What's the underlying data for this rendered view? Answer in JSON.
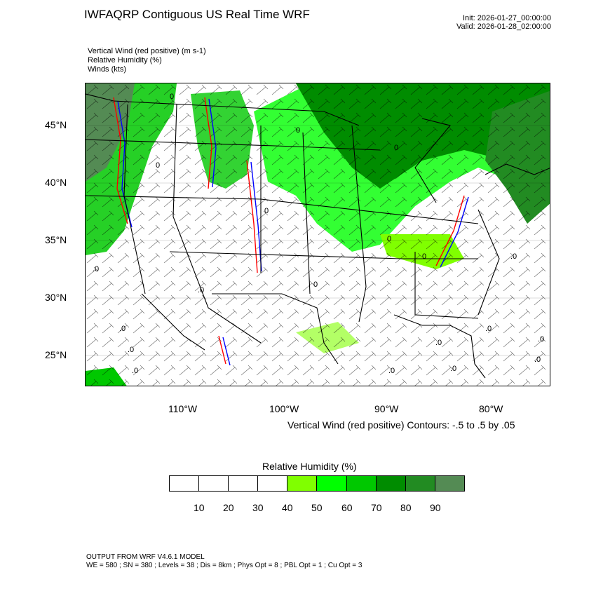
{
  "header": {
    "title": "IWFAQRP Contiguous US Real Time WRF",
    "init": "Init: 2026-01-27_00:00:00",
    "valid": "Valid: 2026-01-28_02:00:00"
  },
  "fields": [
    "Vertical Wind (red positive)   (m s-1)",
    "Relative Humidity   (%)",
    "Winds   (kts)"
  ],
  "map": {
    "lat_labels": [
      "45°N",
      "40°N",
      "35°N",
      "30°N",
      "25°N"
    ],
    "lon_labels": [
      "110°W",
      "100°W",
      "90°W",
      "80°W"
    ],
    "wind_markers": [
      "0",
      "0",
      "0",
      "0",
      "0",
      "0",
      "0",
      "0",
      ".0",
      ".0",
      ".0",
      ".0",
      ".0",
      ".0",
      ".0",
      ".0",
      ".0",
      ".0",
      ".0",
      ".0"
    ]
  },
  "contour_note": "Vertical Wind (red positive) Contours: -.5 to .5 by .05",
  "colorbar": {
    "title": "Relative Humidity  (%)",
    "colors": [
      "#ffffff",
      "#ffffff",
      "#ffffff",
      "#ffffff",
      "#80ff00",
      "#00ff00",
      "#00c800",
      "#008c00",
      "#228b22",
      "#548b54"
    ],
    "labels": [
      "10",
      "20",
      "30",
      "40",
      "50",
      "60",
      "70",
      "80",
      "90"
    ]
  },
  "footer": {
    "line1": "OUTPUT FROM WRF V4.6.1 MODEL",
    "line2": "WE = 580 ; SN = 380 ; Levels = 38 ; Dis = 8km ; Phys Opt = 8 ; PBL Opt = 1 ; Cu Opt = 3"
  }
}
